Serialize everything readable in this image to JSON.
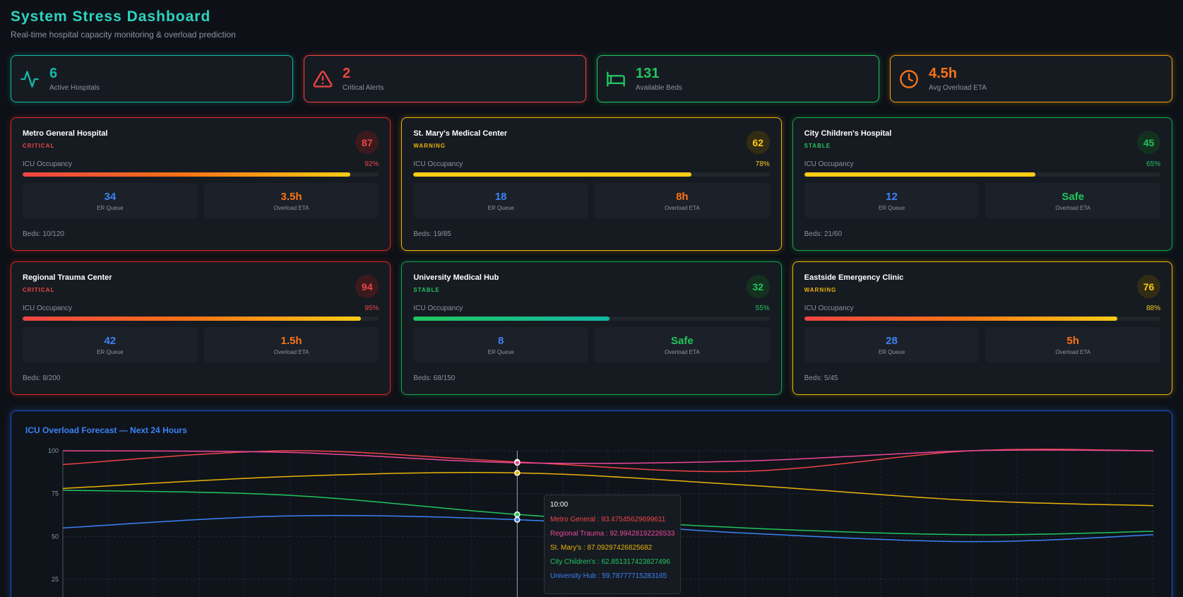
{
  "header": {
    "title": "System Stress Dashboard",
    "subtitle": "Real-time hospital capacity monitoring & overload prediction"
  },
  "stats": [
    {
      "value": "6",
      "label": "Active Hospitals",
      "icon": "activity-icon",
      "color": "#14b8a6"
    },
    {
      "value": "2",
      "label": "Critical Alerts",
      "icon": "alert-triangle-icon",
      "color": "#ef4444"
    },
    {
      "value": "131",
      "label": "Available Beds",
      "icon": "bed-icon",
      "color": "#22c55e"
    },
    {
      "value": "4.5h",
      "label": "Avg Overload ETA",
      "icon": "clock-icon",
      "color": "#f97316"
    }
  ],
  "hospitals": [
    {
      "name": "Metro General Hospital",
      "status": "CRITICAL",
      "score": "87",
      "occ_label": "ICU Occupancy",
      "occ_text": "92%",
      "occ": 92,
      "er": "34",
      "er_label": "ER Queue",
      "eta": "3.5h",
      "eta_label": "Overload ETA",
      "beds": "Beds: 10/120"
    },
    {
      "name": "St. Mary's Medical Center",
      "status": "WARNING",
      "score": "62",
      "occ_label": "ICU Occupancy",
      "occ_text": "78%",
      "occ": 78,
      "er": "18",
      "er_label": "ER Queue",
      "eta": "8h",
      "eta_label": "Overload ETA",
      "beds": "Beds: 19/85"
    },
    {
      "name": "City Children's Hospital",
      "status": "STABLE",
      "score": "45",
      "occ_label": "ICU Occupancy",
      "occ_text": "65%",
      "occ": 65,
      "er": "12",
      "er_label": "ER Queue",
      "eta": "Safe",
      "eta_label": "Overload ETA",
      "beds": "Beds: 21/60"
    },
    {
      "name": "Regional Trauma Center",
      "status": "CRITICAL",
      "score": "94",
      "occ_label": "ICU Occupancy",
      "occ_text": "95%",
      "occ": 95,
      "er": "42",
      "er_label": "ER Queue",
      "eta": "1.5h",
      "eta_label": "Overload ETA",
      "beds": "Beds: 8/200"
    },
    {
      "name": "University Medical Hub",
      "status": "STABLE",
      "score": "32",
      "occ_label": "ICU Occupancy",
      "occ_text": "55%",
      "occ": 55,
      "er": "8",
      "er_label": "ER Queue",
      "eta": "Safe",
      "eta_label": "Overload ETA",
      "beds": "Beds: 68/150"
    },
    {
      "name": "Eastside Emergency Clinic",
      "status": "WARNING",
      "score": "76",
      "occ_label": "ICU Occupancy",
      "occ_text": "88%",
      "occ": 88,
      "er": "28",
      "er_label": "ER Queue",
      "eta": "5h",
      "eta_label": "Overload ETA",
      "beds": "Beds: 5/45"
    }
  ],
  "colors": {
    "critical": "#ef4444",
    "warning": "#eab308",
    "stable": "#22c55e",
    "er": "#3b82f6",
    "eta_orange": "#f97316"
  },
  "forecast": {
    "title": "ICU Overload Forecast — Next 24 Hours",
    "tooltip": {
      "time": "10:00",
      "rows": [
        {
          "text": "Metro General : 93.47545629699611",
          "color": "#ef4444"
        },
        {
          "text": "Regional Trauma : 92.99428192226533",
          "color": "#ec4899"
        },
        {
          "text": "St. Mary's : 87.09297426825682",
          "color": "#eab308"
        },
        {
          "text": "City Children's : 62.851317423827496",
          "color": "#22c55e"
        },
        {
          "text": "University Hub : 59.78777715283165",
          "color": "#3b82f6"
        }
      ]
    }
  },
  "chart_data": {
    "type": "line",
    "title": "ICU Overload Forecast — Next 24 Hours",
    "x": [
      0,
      5,
      10,
      15,
      20,
      24
    ],
    "y_ticks": [
      25,
      50,
      75,
      100
    ],
    "ylim": [
      20,
      100
    ],
    "highlight_x": 10,
    "grid": true,
    "series": [
      {
        "name": "Metro General",
        "color": "#ef4444",
        "values": [
          92,
          100,
          93.47545629699611,
          88,
          100,
          100
        ]
      },
      {
        "name": "Regional Trauma",
        "color": "#ec4899",
        "values": [
          100,
          99,
          92.99428192226533,
          94,
          100,
          100
        ]
      },
      {
        "name": "St. Mary's",
        "color": "#eab308",
        "values": [
          78,
          85,
          87.09297426825682,
          80,
          71,
          68
        ]
      },
      {
        "name": "City Children's",
        "color": "#22c55e",
        "values": [
          77,
          74,
          62.851317423827496,
          55,
          51,
          53
        ]
      },
      {
        "name": "University Hub",
        "color": "#3b82f6",
        "values": [
          55,
          62,
          59.78777715283165,
          52,
          47,
          51
        ]
      }
    ]
  }
}
